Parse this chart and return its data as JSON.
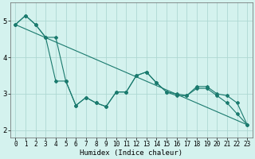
{
  "xlabel": "Humidex (Indice chaleur)",
  "bg_color": "#d4f2ee",
  "grid_color": "#aed8d3",
  "line_color": "#1a7a6e",
  "xlim": [
    -0.5,
    23.5
  ],
  "ylim": [
    1.8,
    5.5
  ],
  "line1_x": [
    0,
    1,
    2,
    3,
    4,
    5,
    6,
    7,
    8,
    9,
    10,
    11,
    12,
    13,
    14,
    15,
    16,
    17,
    18,
    19,
    20,
    21,
    22,
    23
  ],
  "line1_y": [
    4.9,
    5.15,
    4.9,
    4.55,
    3.35,
    3.35,
    2.68,
    2.9,
    2.75,
    2.65,
    3.05,
    3.05,
    3.5,
    3.6,
    3.3,
    3.05,
    3.0,
    2.95,
    3.2,
    3.2,
    3.0,
    2.95,
    2.75,
    2.15
  ],
  "line2_x": [
    0,
    1,
    2,
    3,
    4,
    5,
    6,
    7,
    8,
    9,
    10,
    11,
    12,
    13,
    14,
    15,
    16,
    17,
    18,
    19,
    20,
    21,
    22,
    23
  ],
  "line2_y": [
    4.9,
    5.15,
    4.9,
    4.55,
    4.55,
    3.35,
    2.68,
    2.9,
    2.75,
    2.65,
    3.05,
    3.05,
    3.5,
    3.6,
    3.3,
    3.05,
    2.95,
    2.95,
    3.15,
    3.15,
    2.95,
    2.75,
    2.45,
    2.15
  ],
  "line3_x": [
    0,
    23
  ],
  "line3_y": [
    4.9,
    2.15
  ],
  "ytick_vals": [
    2,
    3,
    4,
    5
  ],
  "xtick_labels": [
    "0",
    "1",
    "2",
    "3",
    "4",
    "5",
    "6",
    "7",
    "8",
    "9",
    "10",
    "11",
    "12",
    "13",
    "14",
    "15",
    "16",
    "17",
    "18",
    "19",
    "20",
    "21",
    "22",
    "23"
  ],
  "xlabel_fontsize": 6.5,
  "tick_fontsize": 5.5,
  "ytick_fontsize": 6.5,
  "marker_size": 2.0,
  "line_width": 0.8
}
